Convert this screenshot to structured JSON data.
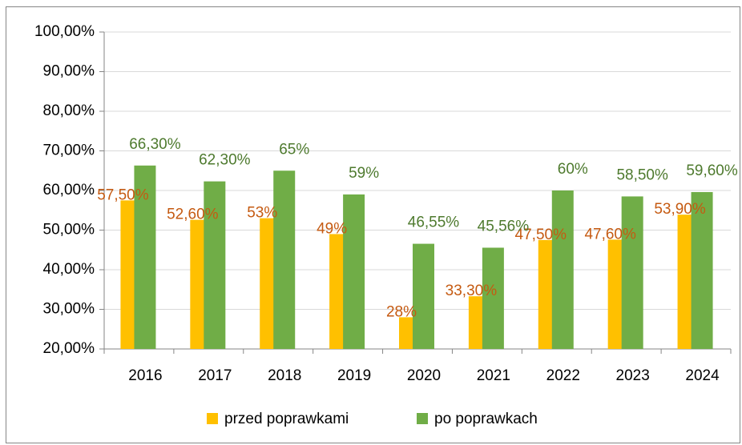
{
  "chart_data": {
    "type": "bar",
    "categories": [
      "2016",
      "2017",
      "2018",
      "2019",
      "2020",
      "2021",
      "2022",
      "2023",
      "2024"
    ],
    "series": [
      {
        "name": "przed poprawkami",
        "color": "#ffc000",
        "label_color": "#c55a11",
        "values": [
          57.5,
          52.6,
          53,
          49,
          28,
          33.3,
          47.5,
          47.6,
          53.9
        ],
        "value_labels": [
          "57,50%",
          "52,60%",
          "53%",
          "49%",
          "28%",
          "33,30%",
          "47,50%",
          "47,60%",
          "53,90%"
        ]
      },
      {
        "name": "po poprawkach",
        "color": "#70ad47",
        "label_color": "#4e7a2e",
        "values": [
          66.3,
          62.3,
          65,
          59,
          46.55,
          45.56,
          60,
          58.5,
          59.6
        ],
        "value_labels": [
          "66,30%",
          "62,30%",
          "65%",
          "59%",
          "46,55%",
          "45,56%",
          "60%",
          "58,50%",
          "59,60%"
        ]
      }
    ],
    "ylim": [
      20,
      100
    ],
    "yticks": [
      {
        "value": 20,
        "label": "20,00%"
      },
      {
        "value": 30,
        "label": "30,00%"
      },
      {
        "value": 40,
        "label": "40,00%"
      },
      {
        "value": 50,
        "label": "50,00%"
      },
      {
        "value": 60,
        "label": "60,00%"
      },
      {
        "value": 70,
        "label": "70,00%"
      },
      {
        "value": 80,
        "label": "80,00%"
      },
      {
        "value": 90,
        "label": "90,00%"
      },
      {
        "value": 100,
        "label": "100,00%"
      }
    ],
    "grid": true,
    "legend": "bottom"
  }
}
